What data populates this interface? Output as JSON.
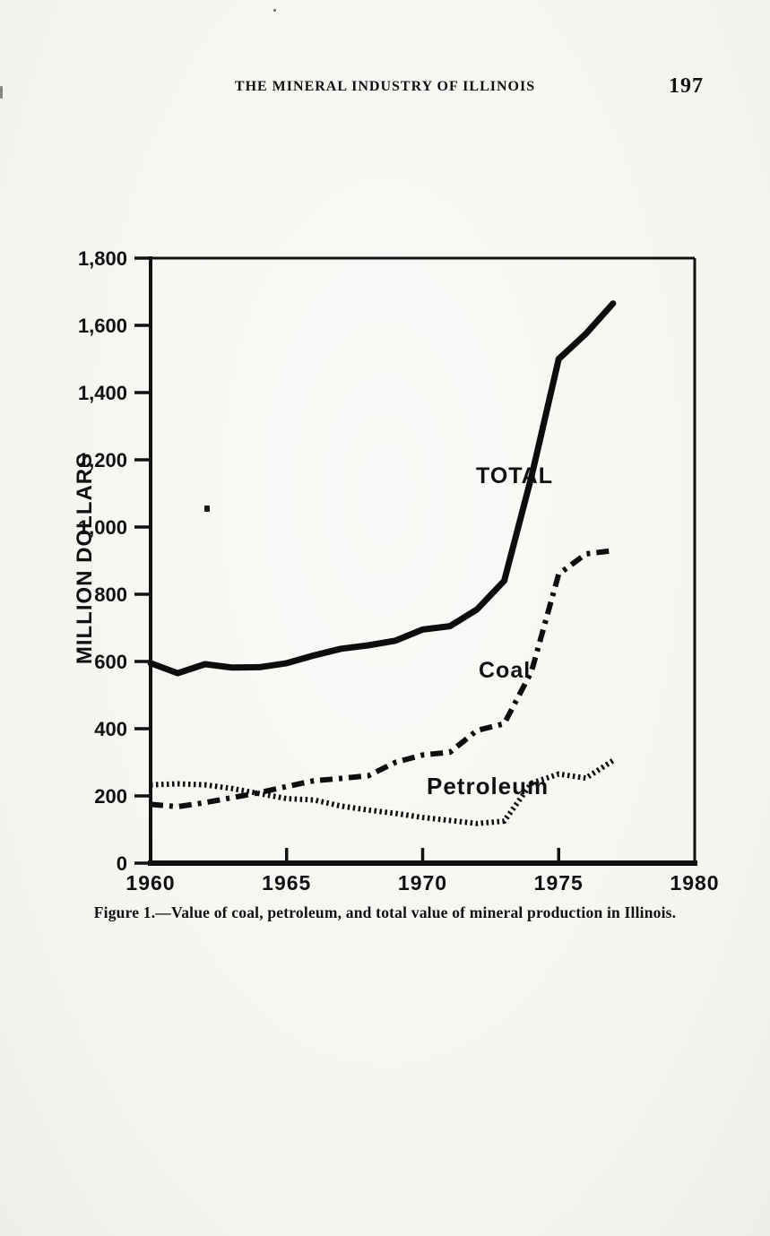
{
  "page": {
    "header": "THE MINERAL INDUSTRY OF ILLINOIS",
    "page_number": "197",
    "caption": "Figure 1.—Value of coal, petroleum, and total value of mineral production in Illinois."
  },
  "chart_data": {
    "type": "line",
    "title": "",
    "xlabel": "",
    "ylabel": "MILLION DOLLARS",
    "xlim": [
      1960,
      1980
    ],
    "ylim": [
      0,
      1800
    ],
    "grid": false,
    "legend_position": "inline-labels",
    "ink_color": "#111111",
    "x": [
      1960,
      1961,
      1962,
      1963,
      1964,
      1965,
      1966,
      1967,
      1968,
      1969,
      1970,
      1971,
      1972,
      1973,
      1974,
      1975,
      1976,
      1977
    ],
    "series": [
      {
        "name": "TOTAL",
        "style": "solid",
        "values": [
          595,
          565,
          592,
          582,
          583,
          595,
          618,
          638,
          648,
          662,
          695,
          705,
          755,
          840,
          1150,
          1500,
          1575,
          1665
        ]
      },
      {
        "name": "Coal",
        "style": "dash-dot",
        "values": [
          175,
          168,
          180,
          195,
          210,
          228,
          245,
          252,
          260,
          300,
          322,
          330,
          395,
          415,
          570,
          860,
          920,
          930
        ]
      },
      {
        "name": "Petroleum",
        "style": "dotted",
        "values": [
          233,
          236,
          233,
          222,
          207,
          192,
          188,
          170,
          158,
          148,
          136,
          127,
          118,
          125,
          238,
          265,
          253,
          305
        ]
      }
    ],
    "yticks": {
      "values": [
        0,
        200,
        400,
        600,
        800,
        1000,
        1200,
        1400,
        1600,
        1800
      ],
      "labels": [
        "0",
        "200",
        "400",
        "600",
        "800",
        "1,000",
        "1,200",
        "1,400",
        "1,600",
        "1,800"
      ]
    },
    "xticks": {
      "values": [
        1960,
        1965,
        1970,
        1975,
        1980
      ],
      "labels": [
        "1960",
        "1965",
        "1970",
        "1975",
        "1980"
      ],
      "inner_tick_values": [
        1965,
        1970,
        1975
      ]
    }
  }
}
